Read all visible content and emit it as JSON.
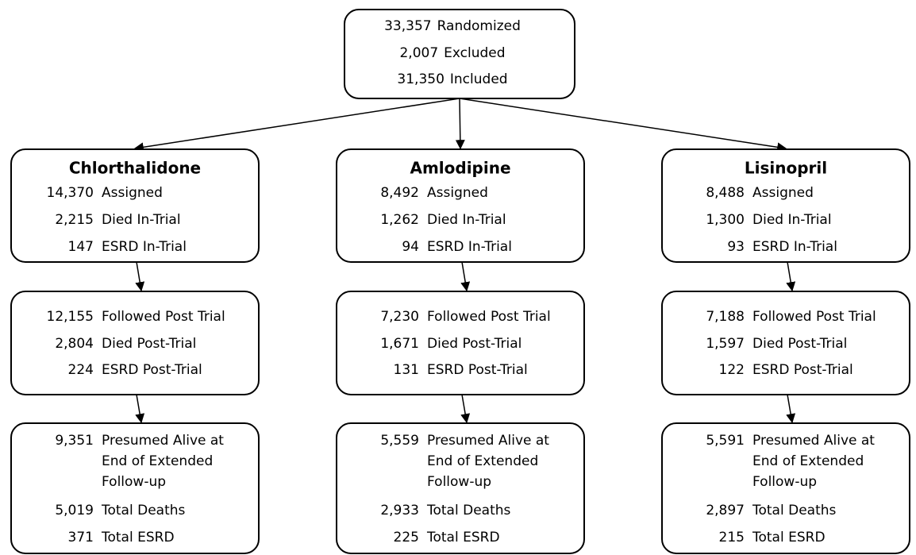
{
  "top": {
    "rows": [
      {
        "count": "33,357",
        "label": "Randomized"
      },
      {
        "count": "2,007",
        "label": "Excluded"
      },
      {
        "count": "31,350",
        "label": "Included"
      }
    ]
  },
  "columns": [
    {
      "title": "Chlorthalidone",
      "boxes": [
        {
          "rows": [
            {
              "count": "14,370",
              "label": "Assigned"
            },
            {
              "count": "2,215",
              "label": "Died In-Trial"
            },
            {
              "count": "147",
              "label": "ESRD In-Trial"
            }
          ]
        },
        {
          "rows": [
            {
              "count": "12,155",
              "label": "Followed Post Trial"
            },
            {
              "count": "2,804",
              "label": "Died Post-Trial"
            },
            {
              "count": "224",
              "label": "ESRD Post-Trial"
            }
          ]
        },
        {
          "rows": [
            {
              "count": "9,351",
              "label": [
                "Presumed Alive  at",
                "End of Extended",
                "Follow-up"
              ]
            },
            {
              "count": "5,019",
              "label": "Total Deaths"
            },
            {
              "count": "371",
              "label": "Total ESRD"
            }
          ]
        }
      ]
    },
    {
      "title": "Amlodipine",
      "boxes": [
        {
          "rows": [
            {
              "count": "8,492",
              "label": "Assigned"
            },
            {
              "count": "1,262",
              "label": "Died In-Trial"
            },
            {
              "count": "94",
              "label": "ESRD In-Trial"
            }
          ]
        },
        {
          "rows": [
            {
              "count": "7,230",
              "label": "Followed Post Trial"
            },
            {
              "count": "1,671",
              "label": "Died Post-Trial"
            },
            {
              "count": "131",
              "label": "ESRD Post-Trial"
            }
          ]
        },
        {
          "rows": [
            {
              "count": "5,559",
              "label": [
                "Presumed Alive  at",
                "End of Extended",
                "Follow-up"
              ]
            },
            {
              "count": "2,933",
              "label": "Total Deaths"
            },
            {
              "count": "225",
              "label": "Total ESRD"
            }
          ]
        }
      ]
    },
    {
      "title": "Lisinopril",
      "boxes": [
        {
          "rows": [
            {
              "count": "8,488",
              "label": "Assigned"
            },
            {
              "count": "1,300",
              "label": "Died In-Trial"
            },
            {
              "count": "93",
              "label": "ESRD In-Trial"
            }
          ]
        },
        {
          "rows": [
            {
              "count": "7,188",
              "label": "Followed Post Trial"
            },
            {
              "count": "1,597",
              "label": "Died Post-Trial"
            },
            {
              "count": "122",
              "label": "ESRD Post-Trial"
            }
          ]
        },
        {
          "rows": [
            {
              "count": "5,591",
              "label": [
                "Presumed Alive  at",
                "End of Extended",
                "Follow-up"
              ]
            },
            {
              "count": "2,897",
              "label": "Total Deaths"
            },
            {
              "count": "215",
              "label": "Total ESRD"
            }
          ]
        }
      ]
    }
  ]
}
